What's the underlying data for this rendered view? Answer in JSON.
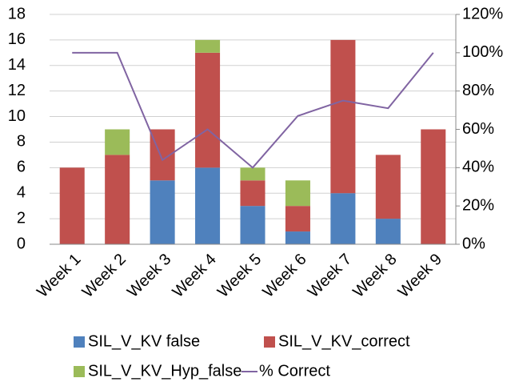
{
  "chart_data": {
    "type": "bar-line",
    "categories": [
      "Week 1",
      "Week 2",
      "Week 3",
      "Week 4",
      "Week 5",
      "Week 6",
      "Week 7",
      "Week 8",
      "Week 9"
    ],
    "series": [
      {
        "name": "SIL_V_KV false",
        "color": "#4f81bd",
        "type": "bar",
        "values": [
          0,
          0,
          5,
          6,
          3,
          1,
          4,
          2,
          0
        ]
      },
      {
        "name": "SIL_V_KV_correct",
        "color": "#c0504d",
        "type": "bar",
        "values": [
          6,
          7,
          4,
          9,
          2,
          2,
          12,
          5,
          9
        ]
      },
      {
        "name": "SIL_V_KV_Hyp_false",
        "color": "#9bbb59",
        "type": "bar",
        "values": [
          0,
          2,
          0,
          1,
          1,
          2,
          0,
          0,
          0
        ]
      },
      {
        "name": "% Correct",
        "color": "#8064a2",
        "type": "line",
        "axis": "y2",
        "values": [
          100,
          100,
          44,
          60,
          40,
          67,
          75,
          71,
          100
        ]
      }
    ],
    "ylim": [
      0,
      18
    ],
    "yticks": [
      0,
      2,
      4,
      6,
      8,
      10,
      12,
      14,
      16,
      18
    ],
    "y2lim": [
      0,
      120
    ],
    "y2ticks": [
      {
        "value": 0,
        "label": "0%"
      },
      {
        "value": 20,
        "label": "20%"
      },
      {
        "value": 40,
        "label": "40%"
      },
      {
        "value": 60,
        "label": "60%"
      },
      {
        "value": 80,
        "label": "80%"
      },
      {
        "value": 100,
        "label": "100%"
      },
      {
        "value": 120,
        "label": "120%"
      }
    ],
    "grid": true,
    "legend": "bottom"
  }
}
